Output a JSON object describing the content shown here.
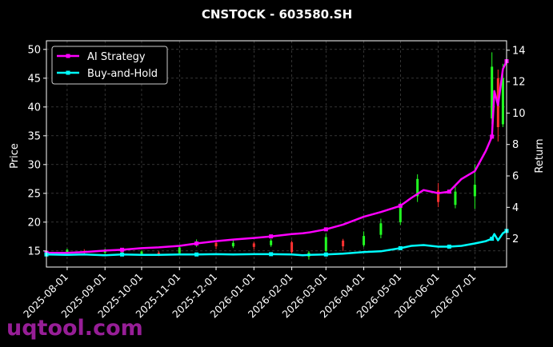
{
  "chart_data": {
    "type": "line",
    "title": "CNSTOCK - 603580.SH",
    "ylabel_left": "Price",
    "ylabel_right": "Return",
    "ylim_left": [
      12.2,
      51.5
    ],
    "ylim_right": [
      0.2,
      14.6
    ],
    "yticks_left": [
      15,
      20,
      25,
      30,
      35,
      40,
      45,
      50
    ],
    "yticks_right": [
      2,
      4,
      6,
      8,
      10,
      12,
      14
    ],
    "xlim": [
      "2025-07-15",
      "2026-07-27"
    ],
    "xticks": [
      "2025-08-01",
      "2025-09-01",
      "2025-10-01",
      "2025-11-01",
      "2025-12-01",
      "2026-01-01",
      "2026-02-01",
      "2026-03-01",
      "2026-04-01",
      "2026-05-01",
      "2026-06-01",
      "2026-07-01"
    ],
    "grid": true,
    "legend_position": "top-left",
    "series": [
      {
        "name": "AI Strategy",
        "color": "#ff00ff",
        "axis": "right",
        "x": [
          "2025-07-15",
          "2025-08-01",
          "2025-08-15",
          "2025-09-01",
          "2025-09-15",
          "2025-10-01",
          "2025-10-15",
          "2025-11-01",
          "2025-11-15",
          "2025-12-01",
          "2025-12-15",
          "2026-01-01",
          "2026-01-15",
          "2026-02-01",
          "2026-02-10",
          "2026-02-15",
          "2026-03-01",
          "2026-03-15",
          "2026-04-01",
          "2026-04-15",
          "2026-05-01",
          "2026-05-10",
          "2026-05-20",
          "2026-06-01",
          "2026-06-10",
          "2026-06-20",
          "2026-07-01",
          "2026-07-10",
          "2026-07-15",
          "2026-07-17",
          "2026-07-20",
          "2026-07-24",
          "2026-07-27"
        ],
        "values": [
          1.1,
          1.1,
          1.15,
          1.25,
          1.3,
          1.4,
          1.45,
          1.55,
          1.7,
          1.85,
          1.95,
          2.05,
          2.15,
          2.3,
          2.35,
          2.4,
          2.6,
          2.9,
          3.4,
          3.7,
          4.1,
          4.6,
          5.1,
          4.9,
          5.0,
          5.8,
          6.3,
          7.6,
          8.5,
          11.4,
          10.5,
          12.8,
          13.3
        ]
      },
      {
        "name": "Buy-and-Hold",
        "color": "#00ffff",
        "axis": "right",
        "x": [
          "2025-07-15",
          "2025-08-01",
          "2025-08-15",
          "2025-09-01",
          "2025-09-15",
          "2025-10-01",
          "2025-10-15",
          "2025-11-01",
          "2025-11-15",
          "2025-12-01",
          "2025-12-15",
          "2026-01-01",
          "2026-01-15",
          "2026-02-01",
          "2026-02-10",
          "2026-02-15",
          "2026-03-01",
          "2026-03-15",
          "2026-04-01",
          "2026-04-15",
          "2026-05-01",
          "2026-05-10",
          "2026-05-20",
          "2026-06-01",
          "2026-06-10",
          "2026-06-20",
          "2026-07-01",
          "2026-07-10",
          "2026-07-15",
          "2026-07-17",
          "2026-07-20",
          "2026-07-24",
          "2026-07-27"
        ],
        "values": [
          1.0,
          0.98,
          1.0,
          0.95,
          1.0,
          0.98,
          0.98,
          1.0,
          1.0,
          1.02,
          1.0,
          1.02,
          1.02,
          1.0,
          0.95,
          0.98,
          1.0,
          1.05,
          1.15,
          1.2,
          1.4,
          1.55,
          1.6,
          1.5,
          1.5,
          1.55,
          1.7,
          1.85,
          2.0,
          2.3,
          1.9,
          2.35,
          2.5
        ]
      }
    ],
    "candlesticks_axis": "left",
    "candlesticks": [
      [
        "2025-08-01",
        14.6,
        15.2,
        14.3,
        15.4
      ],
      [
        "2025-08-15",
        15.0,
        14.7,
        14.5,
        15.3
      ],
      [
        "2025-09-01",
        14.7,
        15.1,
        14.4,
        15.4
      ],
      [
        "2025-09-15",
        14.8,
        14.5,
        14.2,
        15.0
      ],
      [
        "2025-10-01",
        14.5,
        14.9,
        14.2,
        15.1
      ],
      [
        "2025-10-15",
        14.7,
        14.4,
        14.1,
        15.0
      ],
      [
        "2025-11-01",
        14.6,
        15.6,
        14.4,
        15.9
      ],
      [
        "2025-11-15",
        16.0,
        16.6,
        15.7,
        17.0
      ],
      [
        "2025-12-01",
        16.4,
        15.8,
        15.3,
        16.7
      ],
      [
        "2025-12-15",
        15.8,
        16.4,
        15.5,
        16.9
      ],
      [
        "2026-01-01",
        16.3,
        15.7,
        15.2,
        16.6
      ],
      [
        "2026-01-15",
        16.0,
        16.8,
        15.7,
        17.1
      ],
      [
        "2026-02-01",
        16.5,
        14.8,
        14.2,
        16.8
      ],
      [
        "2026-02-15",
        14.0,
        14.7,
        13.5,
        15.0
      ],
      [
        "2026-03-01",
        15.0,
        17.4,
        14.8,
        18.0
      ],
      [
        "2026-03-15",
        16.8,
        15.8,
        15.0,
        17.1
      ],
      [
        "2026-04-01",
        16.0,
        17.6,
        15.7,
        18.4
      ],
      [
        "2026-04-15",
        17.8,
        19.8,
        17.2,
        20.6
      ],
      [
        "2026-05-01",
        20.0,
        22.6,
        19.5,
        23.5
      ],
      [
        "2026-05-15",
        24.5,
        27.5,
        23.5,
        28.3
      ],
      [
        "2026-06-01",
        25.5,
        23.5,
        22.6,
        26.8
      ],
      [
        "2026-06-15",
        23.0,
        25.3,
        22.4,
        26.2
      ],
      [
        "2026-07-01",
        24.5,
        26.5,
        22.3,
        30.0
      ],
      [
        "2026-07-15",
        38.0,
        47.0,
        37.0,
        49.5
      ],
      [
        "2026-07-20",
        45.0,
        36.5,
        34.0,
        46.5
      ],
      [
        "2026-07-24",
        37.0,
        45.0,
        36.5,
        47.5
      ]
    ],
    "watermark": "uqtool.com"
  }
}
